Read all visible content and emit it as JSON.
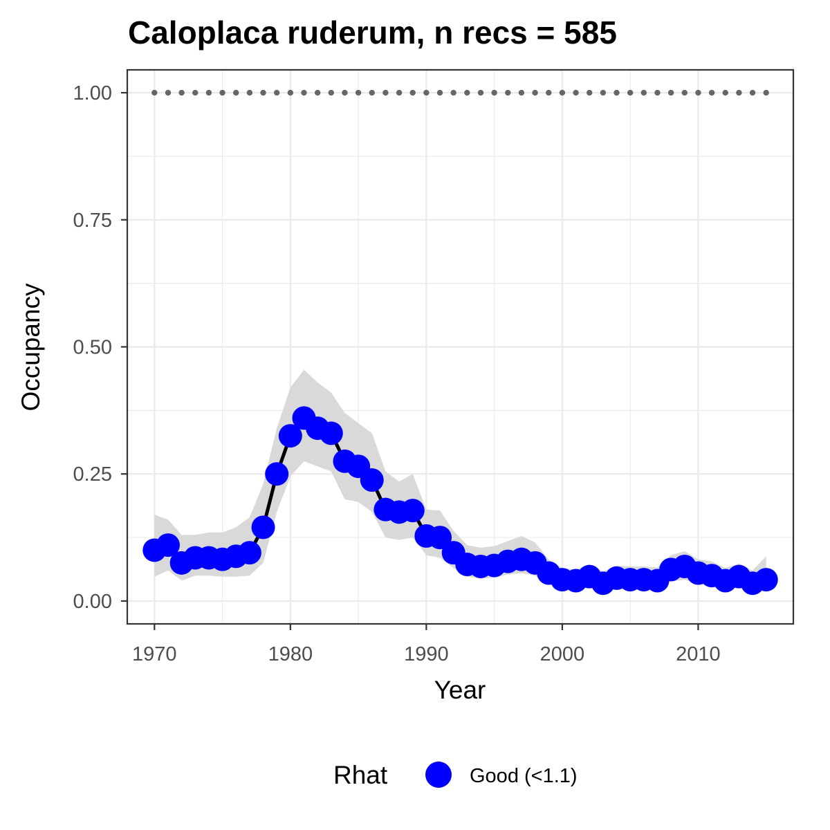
{
  "chart_data": {
    "type": "line",
    "title": "Caloplaca ruderum, n recs = 585",
    "xlabel": "Year",
    "ylabel": "Occupancy",
    "xlim": [
      1968,
      2017
    ],
    "ylim": [
      -0.045,
      1.045
    ],
    "x_ticks": [
      1970,
      1980,
      1990,
      2000,
      2010
    ],
    "x_tick_labels": [
      "1970",
      "1980",
      "1990",
      "2000",
      "2010"
    ],
    "y_ticks": [
      0,
      0.25,
      0.5,
      0.75,
      1.0
    ],
    "y_tick_labels": [
      "0.00",
      "0.25",
      "0.50",
      "0.75",
      "1.00"
    ],
    "grid": true,
    "legend": {
      "position": "bottom",
      "title": "Rhat",
      "entries": [
        {
          "label": "Good (<1.1)",
          "color": "#0000ff"
        }
      ]
    },
    "colors": {
      "points": "#0000ff",
      "line": "#000000",
      "ribbon": "#d9d9d9",
      "reference_dots": "#666666"
    },
    "x": [
      1970,
      1971,
      1972,
      1973,
      1974,
      1975,
      1976,
      1977,
      1978,
      1979,
      1980,
      1981,
      1982,
      1983,
      1984,
      1985,
      1986,
      1987,
      1988,
      1989,
      1990,
      1991,
      1992,
      1993,
      1994,
      1995,
      1996,
      1997,
      1998,
      1999,
      2000,
      2001,
      2002,
      2003,
      2004,
      2005,
      2006,
      2007,
      2008,
      2009,
      2010,
      2011,
      2012,
      2013,
      2014,
      2015
    ],
    "series": [
      {
        "values": [
          0.1,
          0.11,
          0.075,
          0.085,
          0.085,
          0.082,
          0.088,
          0.095,
          0.145,
          0.25,
          0.325,
          0.36,
          0.34,
          0.33,
          0.275,
          0.265,
          0.238,
          0.18,
          0.175,
          0.178,
          0.128,
          0.125,
          0.095,
          0.072,
          0.068,
          0.07,
          0.078,
          0.082,
          0.075,
          0.055,
          0.042,
          0.04,
          0.048,
          0.035,
          0.045,
          0.042,
          0.042,
          0.04,
          0.062,
          0.068,
          0.055,
          0.05,
          0.04,
          0.048,
          0.035,
          0.042
        ],
        "lower": [
          0.048,
          0.06,
          0.04,
          0.05,
          0.05,
          0.048,
          0.048,
          0.05,
          0.075,
          0.175,
          0.245,
          0.275,
          0.265,
          0.255,
          0.2,
          0.195,
          0.175,
          0.125,
          0.12,
          0.125,
          0.09,
          0.085,
          0.065,
          0.048,
          0.044,
          0.046,
          0.052,
          0.055,
          0.05,
          0.035,
          0.025,
          0.023,
          0.028,
          0.02,
          0.026,
          0.024,
          0.024,
          0.023,
          0.038,
          0.042,
          0.033,
          0.03,
          0.023,
          0.028,
          0.02,
          0.025
        ],
        "upper": [
          0.17,
          0.16,
          0.13,
          0.13,
          0.135,
          0.135,
          0.145,
          0.165,
          0.23,
          0.34,
          0.42,
          0.455,
          0.43,
          0.41,
          0.37,
          0.35,
          0.33,
          0.255,
          0.235,
          0.25,
          0.18,
          0.178,
          0.138,
          0.11,
          0.105,
          0.108,
          0.118,
          0.128,
          0.115,
          0.082,
          0.065,
          0.062,
          0.072,
          0.058,
          0.07,
          0.068,
          0.068,
          0.066,
          0.09,
          0.098,
          0.082,
          0.078,
          0.065,
          0.074,
          0.06,
          0.088
        ]
      }
    ],
    "reference_line": {
      "value": 1.0
    }
  }
}
